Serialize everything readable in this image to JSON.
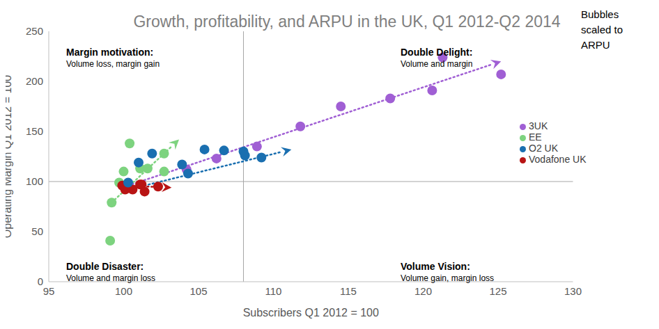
{
  "chart_data": {
    "type": "scatter",
    "title": "Growth, profitability, and ARPU in the UK, Q1 2012-Q2 2014",
    "xlabel": "Subscribers Q1 2012 = 100",
    "ylabel": "Operating Margin Q1 2012 = 100",
    "xlim": [
      95,
      130
    ],
    "xticks": [
      95,
      100,
      105,
      110,
      115,
      120,
      125,
      130
    ],
    "ylim": [
      0,
      250
    ],
    "yticks": [
      0,
      50,
      100,
      150,
      200,
      250
    ],
    "grid": false,
    "legend": "right",
    "line_style": "dotted",
    "note": "Bubbles scaled to ARPU",
    "quadrant_x": 108,
    "quadrant_y": 100,
    "annotations": [
      {
        "title": "Margin motivation:",
        "text": "Volume loss, margin gain"
      },
      {
        "title": "Double Delight:",
        "text": "Volume and margin"
      },
      {
        "title": "Double Disaster:",
        "text": "Volume and margin loss"
      },
      {
        "title": "Volume Vision:",
        "text": "Volume gain, margin loss"
      }
    ],
    "series": [
      {
        "name": "EE",
        "color": "#7dd37f",
        "x": [
          99.1,
          99.2,
          99.7,
          100.0,
          100.4,
          101.1,
          101.6,
          102.7,
          102.7
        ],
        "values": [
          41,
          79,
          99,
          110,
          138,
          113,
          113,
          128,
          110
        ],
        "trend_x": [
          99.2,
          103.7
        ],
        "trend_y": [
          79,
          142
        ]
      },
      {
        "name": "3UK",
        "color": "#a05fd4",
        "x": [
          100.3,
          104.2,
          106.2,
          108.9,
          111.8,
          114.5,
          117.8,
          120.6,
          121.3,
          125.2
        ],
        "values": [
          95,
          112,
          123,
          135,
          155,
          175,
          183,
          191,
          224,
          207
        ],
        "trend_x": [
          100.3,
          125.2
        ],
        "trend_y": [
          96,
          220
        ]
      },
      {
        "name": "Vodafone UK",
        "color": "#b81414",
        "x": [
          99.9,
          100.1,
          100.6,
          101.1,
          101.2,
          101.4,
          102.3
        ],
        "values": [
          96,
          92,
          92,
          97,
          97,
          90,
          95
        ],
        "trend_x": [
          99.9,
          103.2
        ],
        "trend_y": [
          96,
          94
        ]
      },
      {
        "name": "O2 UK",
        "color": "#1a6fb0",
        "x": [
          100.3,
          101.0,
          101.9,
          103.9,
          104.3,
          105.4,
          106.7,
          108.0,
          108.1,
          109.2
        ],
        "values": [
          99,
          119,
          128,
          117,
          108,
          132,
          131,
          130,
          126,
          124
        ],
        "trend_x": [
          100.3,
          111.2
        ],
        "trend_y": [
          92,
          132
        ]
      }
    ]
  }
}
